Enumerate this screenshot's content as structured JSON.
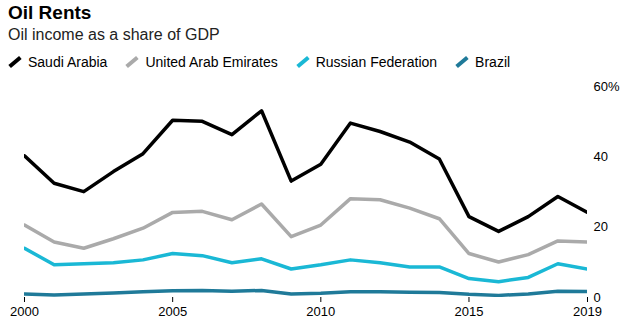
{
  "chart_data": {
    "type": "line",
    "title": "Oil Rents",
    "subtitle": "Oil income as a share of GDP",
    "x": [
      2000,
      2001,
      2002,
      2003,
      2004,
      2005,
      2006,
      2007,
      2008,
      2009,
      2010,
      2011,
      2012,
      2013,
      2014,
      2015,
      2016,
      2017,
      2018,
      2019
    ],
    "series": [
      {
        "name": "Saudi Arabia",
        "color": "#000000",
        "values": [
          40.3,
          32.5,
          30.1,
          35.8,
          40.9,
          50.4,
          50.1,
          46.3,
          53.1,
          33.1,
          37.9,
          49.6,
          47.2,
          44.2,
          39.4,
          23.0,
          18.8,
          23.0,
          28.7,
          24.2
        ]
      },
      {
        "name": "United Arab Emirates",
        "color": "#aaaaaa",
        "values": [
          20.6,
          15.8,
          14.0,
          16.7,
          19.7,
          24.2,
          24.5,
          22.1,
          26.6,
          17.3,
          20.6,
          28.1,
          27.8,
          25.4,
          22.4,
          12.5,
          10.1,
          12.2,
          16.1,
          15.8
        ]
      },
      {
        "name": "Russian Federation",
        "color": "#1ab8d5",
        "values": [
          14.0,
          9.3,
          9.6,
          9.9,
          10.7,
          12.5,
          11.9,
          9.9,
          11.0,
          8.1,
          9.3,
          10.7,
          9.9,
          8.7,
          8.7,
          5.4,
          4.5,
          5.7,
          9.6,
          8.1
        ]
      },
      {
        "name": "Brazil",
        "color": "#1f7a99",
        "values": [
          1.0,
          0.7,
          1.0,
          1.3,
          1.6,
          1.9,
          2.0,
          1.8,
          2.0,
          1.0,
          1.2,
          1.6,
          1.6,
          1.5,
          1.4,
          0.9,
          0.6,
          1.0,
          1.8,
          1.7
        ]
      }
    ],
    "xlim": [
      2000,
      2019
    ],
    "xticks": [
      2000,
      2005,
      2010,
      2015,
      2019
    ],
    "ylim": [
      0,
      60
    ],
    "yticks": [
      0,
      20,
      40,
      {
        "value": 60,
        "label": "60%"
      }
    ],
    "grid": false,
    "legend": "top-left"
  }
}
